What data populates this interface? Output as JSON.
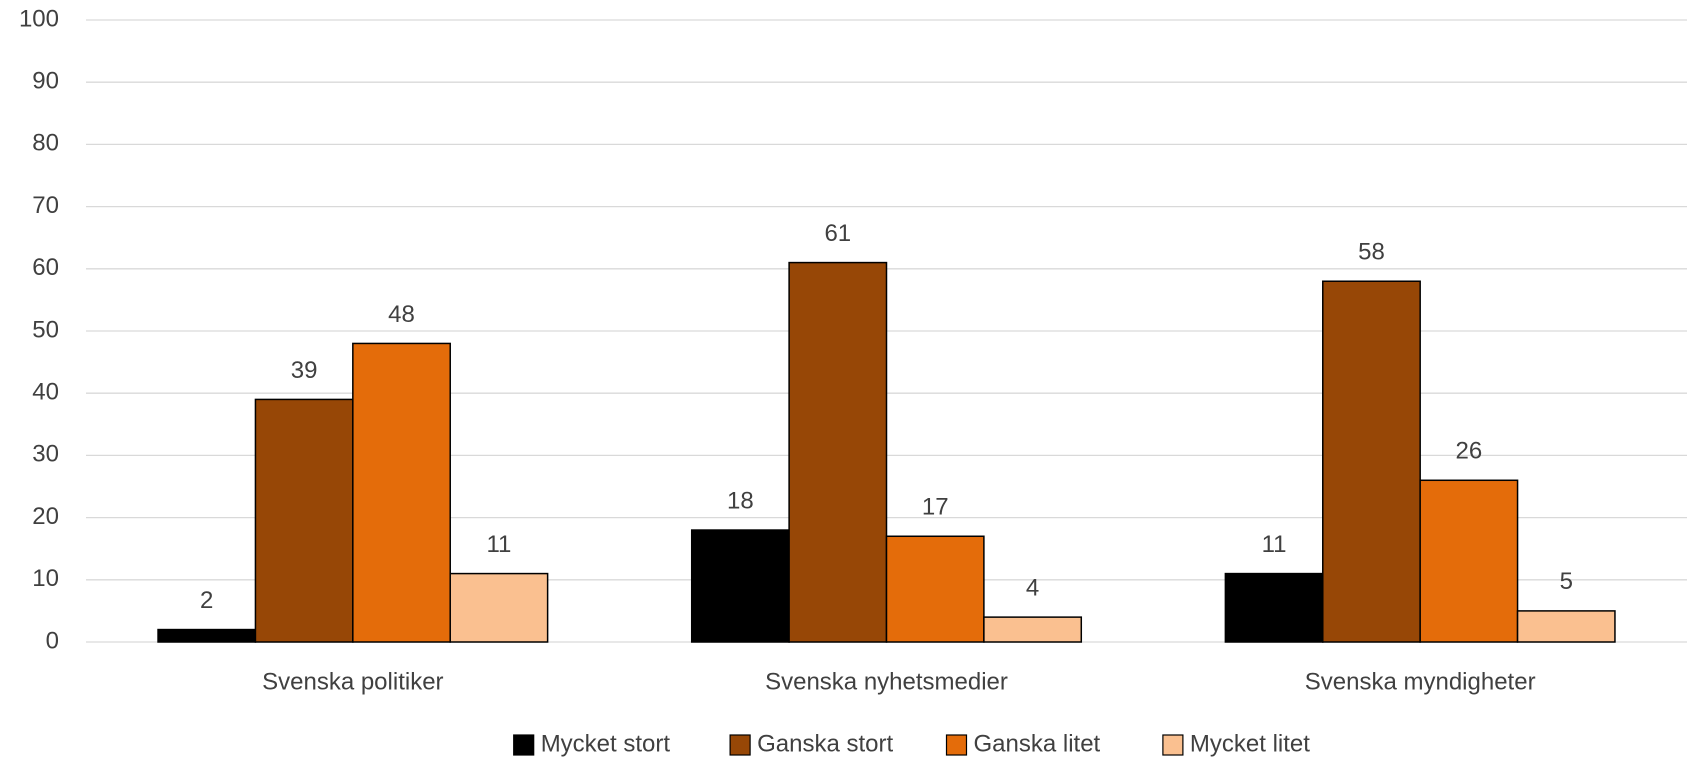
{
  "chart_data": {
    "type": "bar",
    "categories": [
      "Svenska politiker",
      "Svenska nyhetsmedier",
      "Svenska myndigheter"
    ],
    "series": [
      {
        "name": "Mycket stort",
        "color": "#000000",
        "values": [
          2,
          18,
          11
        ]
      },
      {
        "name": "Ganska stort",
        "color": "#974706",
        "values": [
          39,
          61,
          58
        ]
      },
      {
        "name": "Ganska litet",
        "color": "#e46c0a",
        "values": [
          48,
          17,
          26
        ]
      },
      {
        "name": "Mycket litet",
        "color": "#fac090",
        "values": [
          11,
          4,
          5
        ]
      }
    ],
    "ylim": [
      0,
      100
    ],
    "yticks": [
      0,
      10,
      20,
      30,
      40,
      50,
      60,
      70,
      80,
      90,
      100
    ],
    "grid": true,
    "legend": "bottom"
  }
}
